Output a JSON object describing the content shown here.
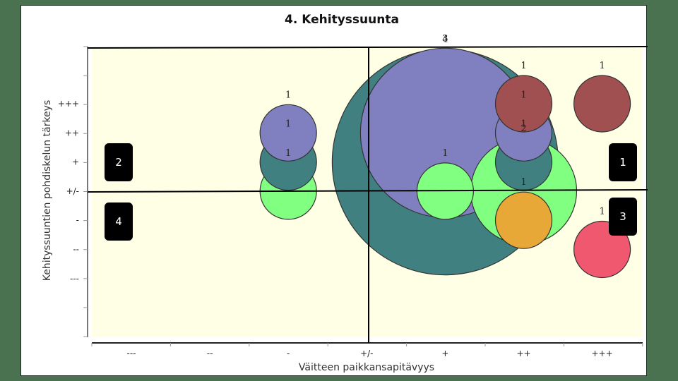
{
  "chart_data": {
    "type": "bubble",
    "title": "4. Kehityssuunta",
    "xlabel": "Väitteen paikkansapitävyys",
    "ylabel": "Kehityssuuntien pohdiskelun tärkeys",
    "x_categories": [
      "---",
      "--",
      "-",
      "+/-",
      "+",
      "++",
      "+++"
    ],
    "y_categories": [
      "+++",
      "++",
      "+",
      "+/-",
      "-",
      "--",
      "---"
    ],
    "grid": false,
    "background": "#ffffe6",
    "quadrant_lines": {
      "x": "+/-",
      "y": "+/-"
    },
    "bubbles": [
      {
        "x": "+",
        "y": "+",
        "count": 4,
        "color": "#408080"
      },
      {
        "x": "+",
        "y": "++",
        "count": 3,
        "color": "#8080c0"
      },
      {
        "x": "++",
        "y": "+/-",
        "count": 2,
        "color": "#80ff80"
      },
      {
        "x": "-",
        "y": "+/-",
        "count": 1,
        "color": "#80ff80"
      },
      {
        "x": "-",
        "y": "+",
        "count": 1,
        "color": "#408080"
      },
      {
        "x": "-",
        "y": "++",
        "count": 1,
        "color": "#8080c0"
      },
      {
        "x": "+",
        "y": "+/-",
        "count": 1,
        "color": "#80ff80"
      },
      {
        "x": "++",
        "y": "+",
        "count": 1,
        "color": "#408080"
      },
      {
        "x": "++",
        "y": "++",
        "count": 1,
        "color": "#8080c0"
      },
      {
        "x": "++",
        "y": "+++",
        "count": 1,
        "color": "#a05050"
      },
      {
        "x": "++",
        "y": "-",
        "count": 1,
        "color": "#e8a838"
      },
      {
        "x": "+++",
        "y": "+++",
        "count": 1,
        "color": "#a05050"
      },
      {
        "x": "+++",
        "y": "--",
        "count": 1,
        "color": "#f05870"
      }
    ],
    "annotations": [
      {
        "label": "1",
        "quadrant": "top-right"
      },
      {
        "label": "2",
        "quadrant": "top-left"
      },
      {
        "label": "3",
        "quadrant": "bottom-right"
      },
      {
        "label": "4",
        "quadrant": "bottom-left"
      }
    ]
  },
  "quadrants": {
    "q1": "1",
    "q2": "2",
    "q3": "3",
    "q4": "4"
  }
}
